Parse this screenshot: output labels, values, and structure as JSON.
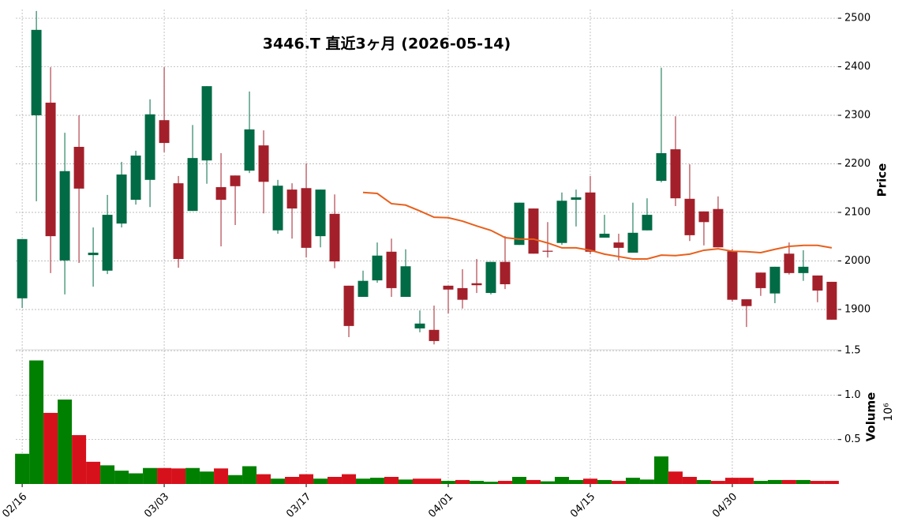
{
  "chart_data": {
    "type": "candlestick",
    "title": "3446.T  直近3ヶ月  (2026-05-14)",
    "xlim": [
      -0.45,
      57.45
    ],
    "xticks": [
      {
        "value": 0,
        "label": "02/16"
      },
      {
        "value": 10,
        "label": "03/03"
      },
      {
        "value": 20,
        "label": "03/17"
      },
      {
        "value": 30,
        "label": "04/01"
      },
      {
        "value": 40,
        "label": "04/15"
      },
      {
        "value": 50,
        "label": "04/30"
      }
    ],
    "ylabel": "Price",
    "ylim": [
      1817,
      2518
    ],
    "yticks": [
      1900,
      2000,
      2100,
      2200,
      2300,
      2400,
      2500
    ],
    "grid": true,
    "up_color": "#006b45",
    "down_color": "#a3202a",
    "open": [
      1923,
      2300,
      2326,
      2001,
      2235,
      2012,
      1980,
      2077,
      2126,
      2167,
      2290,
      2160,
      2103,
      2207,
      2152,
      2176,
      2186,
      2238,
      2063,
      2147,
      2150,
      2051,
      2097,
      1949,
      1926,
      1960,
      2019,
      1926,
      1861,
      1858,
      1949,
      1944,
      1954,
      1934,
      1998,
      2033,
      2108,
      2021,
      2037,
      2126,
      2141,
      2048,
      2038,
      2017,
      2063,
      2165,
      2230,
      2128,
      2102,
      2107,
      2020,
      1921,
      1976,
      1933,
      2015,
      1975,
      1970,
      1957
    ],
    "high": [
      2045,
      2515,
      2399,
      2264,
      2300,
      2069,
      2136,
      2204,
      2227,
      2333,
      2399,
      2175,
      2280,
      2360,
      2222,
      2176,
      2349,
      2269,
      2167,
      2160,
      2201,
      2147,
      2137,
      1949,
      1980,
      2038,
      2046,
      2024,
      1898,
      1908,
      1949,
      1983,
      2004,
      1998,
      2051,
      2120,
      2108,
      2080,
      2141,
      2147,
      2175,
      2095,
      2056,
      2120,
      2129,
      2398,
      2298,
      2199,
      2102,
      2133,
      2025,
      1921,
      1976,
      1988,
      2038,
      2022,
      1970,
      1957
    ],
    "low": [
      1903,
      2123,
      1975,
      1931,
      1996,
      1947,
      1973,
      2069,
      2116,
      2111,
      2224,
      1986,
      2103,
      2159,
      2030,
      2074,
      2181,
      2098,
      2056,
      2046,
      2007,
      2028,
      1985,
      1843,
      1926,
      1955,
      1926,
      1926,
      1853,
      1828,
      1892,
      1902,
      1934,
      1931,
      1942,
      2033,
      2015,
      2007,
      2033,
      2071,
      2014,
      2048,
      2001,
      2017,
      2063,
      2162,
      2113,
      2041,
      2032,
      2028,
      1916,
      1864,
      1928,
      1913,
      1972,
      1959,
      1915,
      1879
    ],
    "close": [
      2045,
      2476,
      2051,
      2185,
      2149,
      2017,
      2095,
      2178,
      2217,
      2302,
      2243,
      2004,
      2212,
      2360,
      2126,
      2154,
      2271,
      2163,
      2155,
      2108,
      2027,
      2147,
      1999,
      1866,
      1959,
      2011,
      1944,
      1989,
      1871,
      1835,
      1941,
      1920,
      1950,
      1998,
      1952,
      2120,
      2015,
      2019,
      2124,
      2131,
      2019,
      2056,
      2027,
      2058,
      2095,
      2222,
      2129,
      2053,
      2080,
      2028,
      1920,
      1907,
      1944,
      1988,
      1975,
      1988,
      1939,
      1879
    ],
    "ma": {
      "color": "#e8601c",
      "values": [
        null,
        null,
        null,
        null,
        null,
        null,
        null,
        null,
        null,
        null,
        null,
        null,
        null,
        null,
        null,
        null,
        null,
        null,
        null,
        null,
        null,
        null,
        null,
        null,
        2141,
        2139,
        2118,
        2115,
        2103,
        2090,
        2089,
        2082,
        2072,
        2063,
        2048,
        2045,
        2045,
        2037,
        2027,
        2027,
        2022,
        2014,
        2009,
        2004,
        2004,
        2012,
        2011,
        2014,
        2022,
        2025,
        2020,
        2019,
        2017,
        2024,
        2030,
        2032,
        2032,
        2027
      ]
    },
    "volume": {
      "ylabel": "Volume",
      "offset": "10⁶",
      "ylim": [
        0,
        1.51
      ],
      "yticks": [
        0.5,
        {
          "value": 1.0,
          "label": "1.0"
        },
        1.5
      ],
      "values": [
        0.34,
        1.39,
        0.8,
        0.95,
        0.55,
        0.25,
        0.21,
        0.15,
        0.12,
        0.18,
        0.18,
        0.175,
        0.18,
        0.14,
        0.175,
        0.1,
        0.2,
        0.11,
        0.06,
        0.08,
        0.11,
        0.06,
        0.08,
        0.11,
        0.06,
        0.07,
        0.08,
        0.05,
        0.06,
        0.06,
        0.035,
        0.045,
        0.035,
        0.025,
        0.035,
        0.08,
        0.045,
        0.03,
        0.08,
        0.045,
        0.06,
        0.045,
        0.035,
        0.07,
        0.05,
        0.31,
        0.14,
        0.08,
        0.045,
        0.035,
        0.07,
        0.07,
        0.035,
        0.045,
        0.045,
        0.045,
        0.035,
        0.035
      ],
      "colors": [
        "#008000",
        "#008000",
        "#d7111c",
        "#008000",
        "#d7111c",
        "#d7111c",
        "#008000",
        "#008000",
        "#008000",
        "#008000",
        "#d7111c",
        "#d7111c",
        "#008000",
        "#008000",
        "#d7111c",
        "#008000",
        "#008000",
        "#d7111c",
        "#008000",
        "#d7111c",
        "#d7111c",
        "#008000",
        "#d7111c",
        "#d7111c",
        "#008000",
        "#008000",
        "#d7111c",
        "#008000",
        "#d7111c",
        "#d7111c",
        "#008000",
        "#d7111c",
        "#008000",
        "#008000",
        "#d7111c",
        "#008000",
        "#d7111c",
        "#008000",
        "#008000",
        "#008000",
        "#d7111c",
        "#008000",
        "#d7111c",
        "#008000",
        "#008000",
        "#008000",
        "#d7111c",
        "#d7111c",
        "#008000",
        "#d7111c",
        "#d7111c",
        "#d7111c",
        "#008000",
        "#008000",
        "#d7111c",
        "#008000",
        "#d7111c",
        "#d7111c"
      ]
    }
  }
}
